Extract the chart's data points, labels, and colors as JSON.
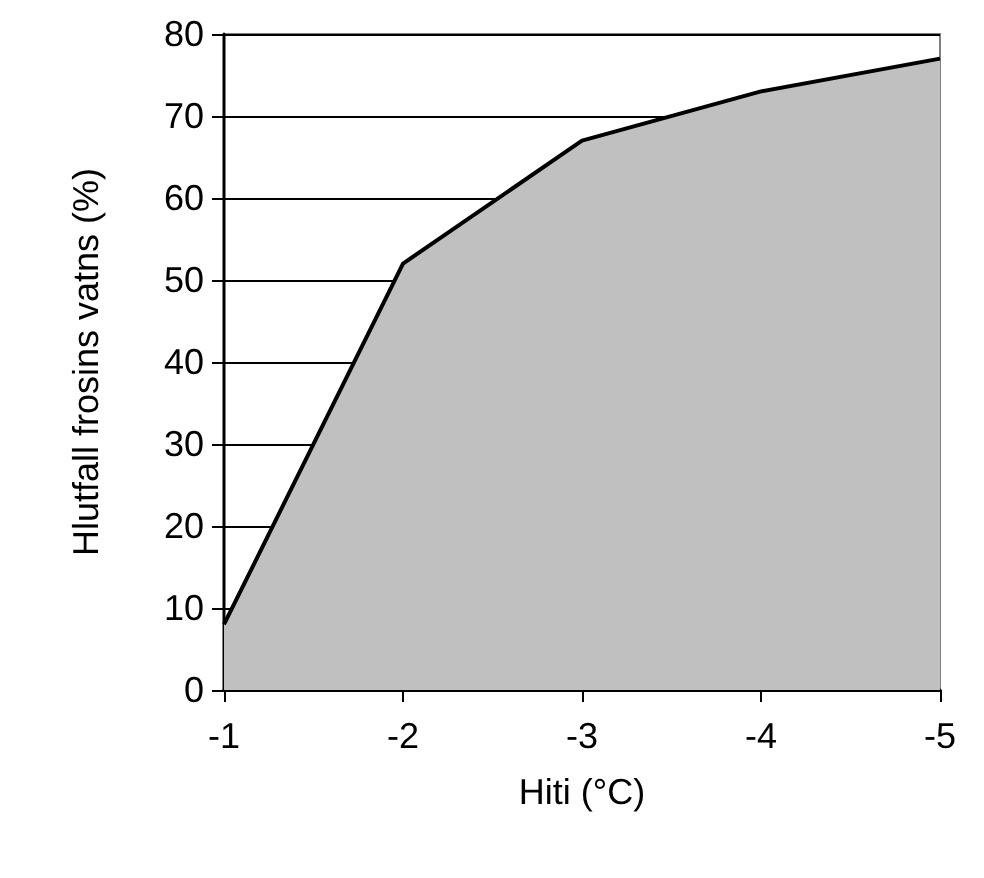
{
  "chart_data": {
    "type": "area",
    "xlabel": "Hiti (°C)",
    "ylabel": "Hlutfall frosins vatns (%)",
    "x": [
      -1,
      -2,
      -3,
      -4,
      -5
    ],
    "series": [
      {
        "color": "#c0c0c0",
        "values": [
          8,
          52,
          67,
          73,
          77
        ]
      }
    ],
    "xlim": [
      -1,
      -5
    ],
    "xticks": [
      -1,
      -2,
      -3,
      -4,
      -5
    ],
    "ylim": [
      0,
      80
    ],
    "yticks": [
      0,
      10,
      20,
      30,
      40,
      50,
      60,
      70,
      80
    ],
    "grid": "y",
    "marker": "none",
    "line_style": "solid"
  }
}
